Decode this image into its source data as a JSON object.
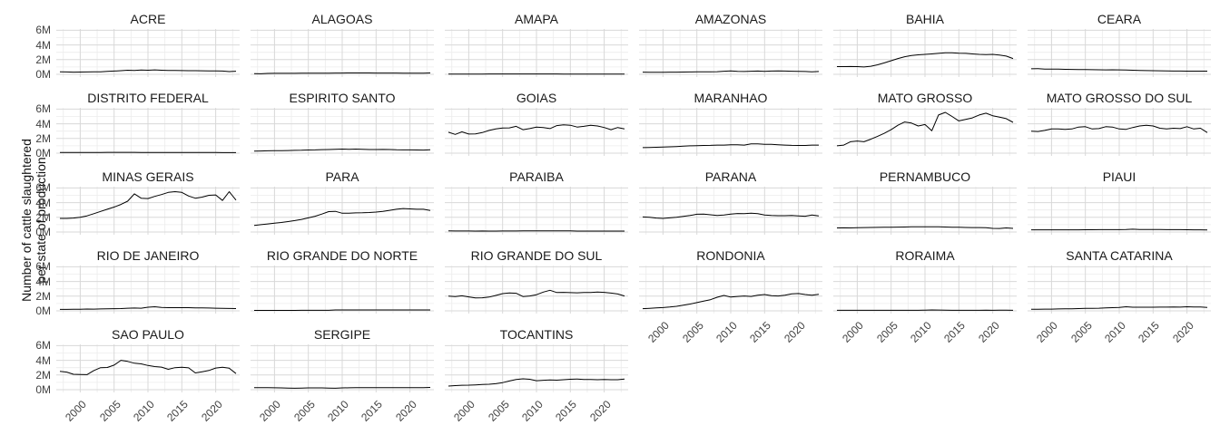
{
  "figure": {
    "ylabel_lines": [
      "Number of cattle slaughtered",
      "per state of production"
    ]
  },
  "colors": {
    "line": "#000000",
    "grid_major": "#d8d8d8",
    "grid_minor": "#ececec",
    "axis_text": "#404040",
    "strip_text": "#1a1a1a",
    "background": "#ffffff"
  },
  "chart_data": {
    "type": "line",
    "title": "",
    "xlabel": "",
    "ylabel": "Number of cattle slaughtered per state of production",
    "facet_layout": {
      "ncol": 6,
      "nrow": 5
    },
    "grid": true,
    "legend": "none",
    "xlim": [
      1997,
      2023
    ],
    "ylim": [
      0,
      6.5
    ],
    "x_tick_values": [
      2000,
      2005,
      2010,
      2015,
      2020
    ],
    "x_tick_labels": [
      "2000",
      "2005",
      "2010",
      "2015",
      "2020"
    ],
    "x_minor_values": [
      1997.5,
      2002.5,
      2007.5,
      2012.5,
      2017.5,
      2022.5
    ],
    "y_tick_values": [
      0,
      2,
      4,
      6
    ],
    "y_tick_labels": [
      "0M",
      "2M",
      "4M",
      "6M"
    ],
    "y_minor_values": [
      1,
      3,
      5
    ],
    "unit": "millions of cattle",
    "years": [
      1997,
      1998,
      1999,
      2000,
      2001,
      2002,
      2003,
      2004,
      2005,
      2006,
      2007,
      2008,
      2009,
      2010,
      2011,
      2012,
      2013,
      2014,
      2015,
      2016,
      2017,
      2018,
      2019,
      2020,
      2021,
      2022,
      2023
    ],
    "facets": [
      {
        "name": "ACRE",
        "values": [
          0.35,
          0.32,
          0.3,
          0.31,
          0.32,
          0.33,
          0.35,
          0.4,
          0.45,
          0.5,
          0.55,
          0.52,
          0.58,
          0.55,
          0.6,
          0.55,
          0.52,
          0.52,
          0.51,
          0.5,
          0.49,
          0.48,
          0.47,
          0.46,
          0.44,
          0.37,
          0.42
        ]
      },
      {
        "name": "ALAGOAS",
        "values": [
          0.1,
          0.07,
          0.12,
          0.13,
          0.13,
          0.14,
          0.14,
          0.15,
          0.15,
          0.16,
          0.16,
          0.16,
          0.17,
          0.17,
          0.18,
          0.18,
          0.18,
          0.18,
          0.17,
          0.17,
          0.17,
          0.17,
          0.16,
          0.16,
          0.16,
          0.16,
          0.18
        ]
      },
      {
        "name": "AMAPA",
        "values": [
          0.04,
          0.04,
          0.04,
          0.04,
          0.04,
          0.04,
          0.05,
          0.05,
          0.05,
          0.05,
          0.05,
          0.05,
          0.05,
          0.05,
          0.05,
          0.05,
          0.05,
          0.04,
          0.04,
          0.04,
          0.04,
          0.03,
          0.03,
          0.03,
          0.03,
          0.03,
          0.03
        ]
      },
      {
        "name": "AMAZONAS",
        "values": [
          0.3,
          0.28,
          0.29,
          0.29,
          0.3,
          0.3,
          0.31,
          0.32,
          0.33,
          0.34,
          0.35,
          0.36,
          0.42,
          0.46,
          0.4,
          0.38,
          0.42,
          0.44,
          0.4,
          0.44,
          0.46,
          0.44,
          0.42,
          0.4,
          0.38,
          0.35,
          0.38
        ]
      },
      {
        "name": "BAHIA",
        "values": [
          1.05,
          1.05,
          1.06,
          1.05,
          1.0,
          1.1,
          1.3,
          1.55,
          1.85,
          2.15,
          2.4,
          2.55,
          2.65,
          2.72,
          2.78,
          2.85,
          2.92,
          2.92,
          2.88,
          2.85,
          2.78,
          2.72,
          2.68,
          2.72,
          2.62,
          2.48,
          2.15
        ]
      },
      {
        "name": "CEARA",
        "values": [
          0.75,
          0.78,
          0.72,
          0.7,
          0.7,
          0.68,
          0.67,
          0.66,
          0.65,
          0.63,
          0.62,
          0.6,
          0.62,
          0.6,
          0.58,
          0.56,
          0.53,
          0.51,
          0.5,
          0.48,
          0.46,
          0.45,
          0.44,
          0.43,
          0.43,
          0.43,
          0.43
        ]
      },
      {
        "name": "DISTRITO FEDERAL",
        "values": [
          0.1,
          0.1,
          0.1,
          0.1,
          0.1,
          0.1,
          0.1,
          0.11,
          0.11,
          0.11,
          0.11,
          0.11,
          0.1,
          0.1,
          0.1,
          0.1,
          0.1,
          0.1,
          0.09,
          0.09,
          0.09,
          0.09,
          0.09,
          0.09,
          0.08,
          0.08,
          0.08
        ]
      },
      {
        "name": "ESPIRITO SANTO",
        "values": [
          0.28,
          0.3,
          0.32,
          0.33,
          0.34,
          0.36,
          0.38,
          0.4,
          0.43,
          0.45,
          0.48,
          0.5,
          0.52,
          0.55,
          0.53,
          0.56,
          0.53,
          0.5,
          0.49,
          0.51,
          0.49,
          0.46,
          0.45,
          0.44,
          0.43,
          0.42,
          0.46
        ]
      },
      {
        "name": "GOIAS",
        "values": [
          2.85,
          2.55,
          2.9,
          2.6,
          2.62,
          2.8,
          3.1,
          3.3,
          3.42,
          3.45,
          3.65,
          3.2,
          3.35,
          3.55,
          3.5,
          3.35,
          3.75,
          3.85,
          3.8,
          3.55,
          3.65,
          3.8,
          3.7,
          3.5,
          3.2,
          3.5,
          3.3
        ]
      },
      {
        "name": "MARANHAO",
        "values": [
          0.75,
          0.78,
          0.8,
          0.83,
          0.86,
          0.9,
          0.95,
          1.0,
          1.02,
          1.05,
          1.06,
          1.1,
          1.1,
          1.15,
          1.15,
          1.1,
          1.26,
          1.26,
          1.2,
          1.2,
          1.15,
          1.1,
          1.06,
          1.05,
          1.05,
          1.1,
          1.1
        ]
      },
      {
        "name": "MATO GROSSO",
        "values": [
          1.0,
          1.1,
          1.55,
          1.65,
          1.55,
          1.9,
          2.3,
          2.7,
          3.2,
          3.8,
          4.25,
          4.1,
          3.7,
          3.9,
          3.05,
          5.2,
          5.55,
          5.0,
          4.4,
          4.6,
          4.8,
          5.2,
          5.45,
          5.1,
          4.9,
          4.7,
          4.2
        ]
      },
      {
        "name": "MATO GROSSO DO SUL",
        "values": [
          3.0,
          2.95,
          3.1,
          3.3,
          3.3,
          3.25,
          3.3,
          3.55,
          3.6,
          3.3,
          3.35,
          3.6,
          3.55,
          3.3,
          3.25,
          3.5,
          3.7,
          3.8,
          3.7,
          3.4,
          3.3,
          3.4,
          3.35,
          3.6,
          3.3,
          3.4,
          2.8
        ]
      },
      {
        "name": "MINAS GERAIS",
        "values": [
          1.85,
          1.85,
          1.9,
          2.0,
          2.2,
          2.5,
          2.8,
          3.1,
          3.4,
          3.75,
          4.2,
          5.2,
          4.6,
          4.55,
          4.85,
          5.1,
          5.4,
          5.5,
          5.4,
          4.9,
          4.6,
          4.75,
          5.0,
          5.05,
          4.3,
          5.5,
          4.35
        ]
      },
      {
        "name": "PARA",
        "values": [
          0.9,
          1.0,
          1.1,
          1.2,
          1.3,
          1.42,
          1.55,
          1.72,
          1.92,
          2.15,
          2.45,
          2.78,
          2.82,
          2.55,
          2.55,
          2.6,
          2.62,
          2.66,
          2.72,
          2.82,
          2.95,
          3.1,
          3.2,
          3.15,
          3.1,
          3.1,
          2.92
        ]
      },
      {
        "name": "PARAIBA",
        "values": [
          0.15,
          0.14,
          0.13,
          0.13,
          0.12,
          0.14,
          0.12,
          0.12,
          0.13,
          0.14,
          0.14,
          0.15,
          0.15,
          0.15,
          0.15,
          0.15,
          0.15,
          0.15,
          0.15,
          0.12,
          0.12,
          0.12,
          0.12,
          0.12,
          0.12,
          0.12,
          0.12
        ]
      },
      {
        "name": "PARANA",
        "values": [
          2.05,
          2.0,
          1.9,
          1.85,
          1.92,
          2.0,
          2.12,
          2.25,
          2.42,
          2.45,
          2.35,
          2.25,
          2.32,
          2.45,
          2.52,
          2.5,
          2.55,
          2.5,
          2.32,
          2.25,
          2.22,
          2.22,
          2.26,
          2.2,
          2.15,
          2.32,
          2.2
        ]
      },
      {
        "name": "PERNAMBUCO",
        "values": [
          0.55,
          0.57,
          0.55,
          0.58,
          0.6,
          0.62,
          0.63,
          0.65,
          0.65,
          0.67,
          0.68,
          0.7,
          0.7,
          0.71,
          0.72,
          0.7,
          0.68,
          0.66,
          0.64,
          0.62,
          0.6,
          0.6,
          0.58,
          0.5,
          0.48,
          0.56,
          0.5
        ]
      },
      {
        "name": "PIAUI",
        "values": [
          0.3,
          0.3,
          0.3,
          0.3,
          0.3,
          0.3,
          0.3,
          0.3,
          0.31,
          0.31,
          0.32,
          0.32,
          0.32,
          0.32,
          0.33,
          0.38,
          0.35,
          0.34,
          0.33,
          0.33,
          0.32,
          0.32,
          0.32,
          0.31,
          0.3,
          0.3,
          0.27
        ]
      },
      {
        "name": "RIO DE JANEIRO",
        "values": [
          0.2,
          0.2,
          0.21,
          0.22,
          0.25,
          0.23,
          0.26,
          0.28,
          0.3,
          0.31,
          0.36,
          0.38,
          0.36,
          0.5,
          0.56,
          0.46,
          0.43,
          0.43,
          0.43,
          0.43,
          0.41,
          0.4,
          0.38,
          0.36,
          0.34,
          0.32,
          0.31
        ]
      },
      {
        "name": "RIO GRANDE DO NORTE",
        "values": [
          0.06,
          0.06,
          0.06,
          0.06,
          0.06,
          0.06,
          0.06,
          0.07,
          0.07,
          0.07,
          0.07,
          0.08,
          0.12,
          0.12,
          0.12,
          0.12,
          0.12,
          0.12,
          0.12,
          0.12,
          0.12,
          0.12,
          0.12,
          0.12,
          0.12,
          0.12,
          0.12
        ]
      },
      {
        "name": "RIO GRANDE DO SUL",
        "values": [
          2.0,
          1.95,
          2.05,
          1.9,
          1.75,
          1.78,
          1.88,
          2.1,
          2.35,
          2.45,
          2.4,
          1.95,
          2.02,
          2.2,
          2.55,
          2.8,
          2.5,
          2.52,
          2.48,
          2.46,
          2.5,
          2.5,
          2.55,
          2.52,
          2.42,
          2.3,
          2.02
        ]
      },
      {
        "name": "RONDONIA",
        "values": [
          0.3,
          0.35,
          0.4,
          0.45,
          0.52,
          0.62,
          0.78,
          0.92,
          1.12,
          1.32,
          1.52,
          1.85,
          2.1,
          1.88,
          1.96,
          2.02,
          1.96,
          2.12,
          2.22,
          2.06,
          2.02,
          2.12,
          2.32,
          2.36,
          2.22,
          2.12,
          2.26
        ]
      },
      {
        "name": "RORAIMA",
        "values": [
          0.07,
          0.07,
          0.07,
          0.07,
          0.07,
          0.07,
          0.07,
          0.07,
          0.08,
          0.08,
          0.08,
          0.08,
          0.08,
          0.1,
          0.12,
          0.11,
          0.09,
          0.08,
          0.08,
          0.08,
          0.08,
          0.08,
          0.1,
          0.08,
          0.1,
          0.09,
          0.08
        ]
      },
      {
        "name": "SANTA CATARINA",
        "values": [
          0.22,
          0.22,
          0.23,
          0.24,
          0.26,
          0.28,
          0.29,
          0.31,
          0.33,
          0.34,
          0.36,
          0.39,
          0.43,
          0.46,
          0.56,
          0.5,
          0.49,
          0.49,
          0.49,
          0.51,
          0.51,
          0.53,
          0.51,
          0.56,
          0.52,
          0.53,
          0.46
        ]
      },
      {
        "name": "SAO PAULO",
        "values": [
          2.5,
          2.4,
          2.1,
          2.08,
          2.05,
          2.6,
          3.0,
          3.02,
          3.35,
          4.0,
          3.85,
          3.6,
          3.52,
          3.3,
          3.15,
          3.08,
          2.78,
          3.0,
          3.05,
          2.98,
          2.28,
          2.45,
          2.62,
          2.95,
          3.05,
          2.92,
          2.2
        ]
      },
      {
        "name": "SERGIPE",
        "values": [
          0.28,
          0.28,
          0.27,
          0.26,
          0.25,
          0.22,
          0.2,
          0.22,
          0.25,
          0.25,
          0.25,
          0.22,
          0.2,
          0.25,
          0.26,
          0.27,
          0.27,
          0.27,
          0.27,
          0.28,
          0.28,
          0.28,
          0.28,
          0.28,
          0.28,
          0.28,
          0.31
        ]
      },
      {
        "name": "TOCANTINS",
        "values": [
          0.5,
          0.55,
          0.6,
          0.62,
          0.66,
          0.7,
          0.74,
          0.82,
          0.96,
          1.18,
          1.38,
          1.48,
          1.42,
          1.22,
          1.28,
          1.32,
          1.3,
          1.36,
          1.42,
          1.46,
          1.4,
          1.4,
          1.36,
          1.4,
          1.36,
          1.36,
          1.46
        ]
      }
    ]
  }
}
